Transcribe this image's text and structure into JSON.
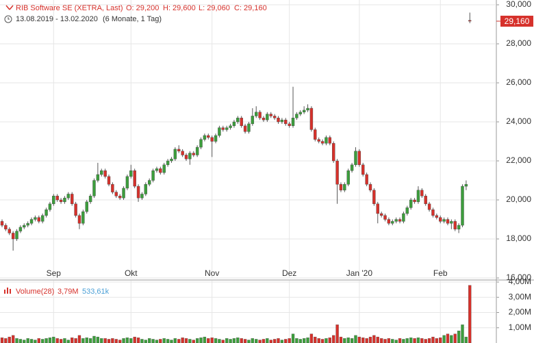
{
  "chart_data": {
    "type": "candlestick",
    "title": "RIB Software SE (XETRA, Last)",
    "ohlc_labels": [
      "O: 29,200",
      "H: 29,600",
      "L: 29,060",
      "C: 29,160"
    ],
    "date_range": "13.08.2019 - 13.02.2020",
    "period": "(6 Monate, 1 Tag)",
    "up_color": "#3c9e3c",
    "down_color": "#d6312b",
    "xticks": [
      {
        "value": 14,
        "label": "Sep"
      },
      {
        "value": 35,
        "label": "Okt"
      },
      {
        "value": 57,
        "label": "Nov"
      },
      {
        "value": 78,
        "label": "Dez"
      },
      {
        "value": 97,
        "label": "Jan '20"
      },
      {
        "value": 119,
        "label": "Feb"
      }
    ],
    "ylim": [
      16000,
      30000
    ],
    "yticks": [
      {
        "value": 16000,
        "label": "16,000"
      },
      {
        "value": 18000,
        "label": "18,000"
      },
      {
        "value": 20000,
        "label": "20,000"
      },
      {
        "value": 22000,
        "label": "22,000"
      },
      {
        "value": 24000,
        "label": "24,000"
      },
      {
        "value": 26000,
        "label": "26,000"
      },
      {
        "value": 28000,
        "label": "28,000"
      },
      {
        "value": 30000,
        "label": "30,000"
      }
    ],
    "grid": true,
    "last_label": "29,160",
    "series": {
      "open": [
        18900,
        18700,
        18500,
        18300,
        18000,
        18400,
        18600,
        18700,
        18800,
        19000,
        19100,
        18900,
        19200,
        19500,
        19800,
        20200,
        20000,
        19900,
        20100,
        20300,
        19800,
        19200,
        18800,
        19400,
        19900,
        20200,
        21000,
        21300,
        21500,
        21200,
        20800,
        20400,
        20200,
        20100,
        20600,
        21200,
        21500,
        20700,
        20100,
        20300,
        20800,
        21000,
        21500,
        21600,
        21400,
        21800,
        22000,
        22100,
        22600,
        22500,
        22300,
        22100,
        22400,
        22300,
        22700,
        23100,
        23300,
        23200,
        23000,
        23300,
        23700,
        23600,
        23700,
        23800,
        24000,
        24200,
        23800,
        23500,
        23900,
        24300,
        24500,
        24200,
        24100,
        24400,
        24300,
        24200,
        24000,
        24100,
        23900,
        23800,
        24200,
        24400,
        24500,
        24600,
        24700,
        23600,
        23100,
        23000,
        22900,
        23200,
        22900,
        22000,
        20800,
        20500,
        20800,
        21500,
        21800,
        22500,
        21800,
        21300,
        20800,
        20500,
        19800,
        19300,
        19200,
        19000,
        18800,
        18900,
        19000,
        18900,
        19300,
        19600,
        20000,
        19900,
        20500,
        20200,
        19800,
        19500,
        19200,
        19100,
        18900,
        19000,
        18800,
        18900,
        18500,
        18700,
        20700,
        29200
      ],
      "high": [
        19000,
        18800,
        18600,
        18400,
        18500,
        18700,
        18800,
        18900,
        19100,
        19200,
        19200,
        19300,
        19600,
        19900,
        20300,
        20300,
        20100,
        20200,
        20400,
        20400,
        19900,
        19300,
        19500,
        20000,
        20300,
        21100,
        21900,
        21600,
        21600,
        21300,
        20900,
        20500,
        20300,
        20700,
        21300,
        21800,
        21600,
        20800,
        20400,
        20900,
        21100,
        21600,
        21700,
        21700,
        21900,
        22100,
        22200,
        22700,
        22800,
        22600,
        22400,
        22500,
        22500,
        22800,
        23200,
        23400,
        23400,
        23300,
        23400,
        23800,
        23800,
        23800,
        23900,
        24100,
        24300,
        24300,
        23900,
        24000,
        24700,
        24800,
        24600,
        24300,
        24500,
        24500,
        24400,
        24300,
        24200,
        24200,
        24000,
        25800,
        24500,
        24600,
        24800,
        24900,
        24800,
        23700,
        23200,
        23100,
        23300,
        23300,
        23000,
        22100,
        20900,
        20900,
        21600,
        21900,
        22700,
        22600,
        21900,
        21400,
        20900,
        20600,
        19900,
        19400,
        19300,
        19100,
        19000,
        19100,
        19100,
        19400,
        19700,
        20100,
        20100,
        20700,
        20600,
        20300,
        19900,
        19600,
        19300,
        19200,
        19100,
        19100,
        19000,
        19000,
        18800,
        20800,
        21000,
        29600
      ],
      "low": [
        18600,
        18400,
        18200,
        17400,
        17900,
        18300,
        18500,
        18600,
        18700,
        18900,
        18800,
        18800,
        19100,
        19400,
        19700,
        19900,
        19800,
        19800,
        20000,
        19700,
        19100,
        18500,
        18700,
        19300,
        19800,
        20100,
        20900,
        21200,
        21100,
        20700,
        20300,
        20100,
        20000,
        20000,
        20500,
        21100,
        20600,
        19900,
        20000,
        20200,
        20700,
        20900,
        21400,
        21300,
        21300,
        21700,
        21900,
        22000,
        22400,
        22200,
        22000,
        21800,
        22200,
        22200,
        22600,
        23000,
        23100,
        22200,
        22900,
        23200,
        23500,
        23500,
        23600,
        23700,
        23900,
        23700,
        23400,
        23400,
        23800,
        24200,
        24100,
        24000,
        24000,
        24200,
        24100,
        23900,
        23900,
        23800,
        23700,
        23700,
        24100,
        24300,
        24400,
        24500,
        23500,
        23000,
        22900,
        22800,
        22800,
        22800,
        21900,
        19800,
        20400,
        20400,
        20700,
        21400,
        21700,
        21700,
        21200,
        20700,
        20400,
        19700,
        18800,
        19100,
        18900,
        18700,
        18700,
        18800,
        18800,
        18800,
        19200,
        19500,
        19800,
        19800,
        20100,
        19700,
        19400,
        19100,
        19000,
        18800,
        18800,
        18700,
        18500,
        18400,
        18300,
        18600,
        20500,
        29060
      ],
      "close": [
        18700,
        18500,
        18300,
        18000,
        18400,
        18600,
        18700,
        18800,
        19000,
        19100,
        18900,
        19200,
        19500,
        19800,
        20200,
        20000,
        19900,
        20100,
        20300,
        19800,
        19200,
        18800,
        19400,
        19900,
        20200,
        21000,
        21300,
        21500,
        21200,
        20800,
        20400,
        20200,
        20100,
        20600,
        21200,
        21500,
        20700,
        20100,
        20300,
        20800,
        21000,
        21500,
        21600,
        21400,
        21800,
        22000,
        22100,
        22600,
        22500,
        22300,
        22100,
        22400,
        22300,
        22700,
        23100,
        23300,
        23200,
        23000,
        23300,
        23700,
        23600,
        23700,
        23800,
        24000,
        24200,
        23800,
        23500,
        23900,
        24300,
        24500,
        24200,
        24100,
        24400,
        24300,
        24200,
        24000,
        24100,
        23900,
        23800,
        24200,
        24400,
        24500,
        24600,
        24700,
        23600,
        23100,
        23000,
        22900,
        23200,
        22900,
        22000,
        20800,
        20500,
        20800,
        21500,
        21800,
        22500,
        21800,
        21300,
        20800,
        20500,
        19800,
        19300,
        19200,
        19000,
        18800,
        18900,
        19000,
        18900,
        19300,
        19600,
        20000,
        19900,
        20500,
        20200,
        19800,
        19500,
        19200,
        19100,
        18900,
        19000,
        18800,
        18900,
        18500,
        18700,
        20700,
        20800,
        29160
      ]
    },
    "volume": {
      "name": "Volume(28)",
      "last_label": "3,79M",
      "avg_label": "533,61k",
      "avg_color": "#4a9fd6",
      "ylim": [
        0,
        4
      ],
      "yticks": [
        {
          "value": 1,
          "label": "1,00M"
        },
        {
          "value": 2,
          "label": "2,00M"
        },
        {
          "value": 3,
          "label": "3,00M"
        },
        {
          "value": 4,
          "label": "4,00M"
        }
      ],
      "values": [
        0.35,
        0.3,
        0.4,
        0.5,
        0.3,
        0.25,
        0.2,
        0.3,
        0.25,
        0.2,
        0.3,
        0.25,
        0.3,
        0.35,
        0.4,
        0.3,
        0.25,
        0.3,
        0.2,
        0.35,
        0.3,
        0.5,
        0.3,
        0.35,
        0.3,
        0.45,
        0.4,
        0.3,
        0.3,
        0.25,
        0.3,
        0.25,
        0.2,
        0.3,
        0.35,
        0.3,
        0.4,
        0.35,
        0.25,
        0.2,
        0.3,
        0.25,
        0.2,
        0.25,
        0.3,
        0.25,
        0.2,
        0.3,
        0.25,
        0.35,
        0.3,
        0.25,
        0.2,
        0.3,
        0.35,
        0.4,
        0.3,
        0.35,
        0.3,
        0.25,
        0.2,
        0.3,
        0.25,
        0.3,
        0.35,
        0.3,
        0.25,
        0.2,
        0.3,
        0.25,
        0.2,
        0.25,
        0.3,
        0.2,
        0.25,
        0.3,
        0.2,
        0.25,
        0.3,
        0.6,
        0.3,
        0.25,
        0.3,
        0.35,
        0.6,
        0.4,
        0.3,
        0.25,
        0.3,
        0.35,
        0.5,
        1.2,
        0.4,
        0.3,
        0.35,
        0.3,
        0.5,
        0.4,
        0.35,
        0.3,
        0.4,
        0.5,
        0.4,
        0.3,
        0.25,
        0.3,
        0.25,
        0.2,
        0.3,
        0.25,
        0.3,
        0.35,
        0.3,
        0.35,
        0.3,
        0.25,
        0.3,
        0.4,
        0.3,
        0.35,
        0.5,
        0.6,
        0.5,
        0.6,
        0.8,
        1.2,
        0.4,
        3.79
      ]
    }
  }
}
